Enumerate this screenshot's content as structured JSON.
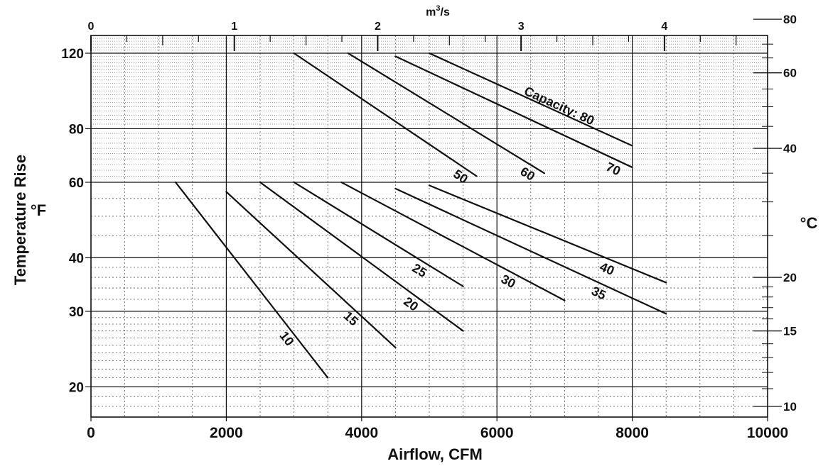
{
  "chart_data": {
    "type": "line",
    "title": "",
    "xlabel": "Airflow, CFM",
    "ylabel": "Temperature Rise",
    "ylabel_unit": "°F",
    "top_axis_label": "m3/s",
    "right_axis_label": "°C",
    "xlim": [
      0,
      10000
    ],
    "ylim": [
      17,
      132
    ],
    "y_scale": "log",
    "grid": true,
    "x_ticks": [
      "0",
      "2000",
      "4000",
      "6000",
      "8000",
      "10000"
    ],
    "x_tick_values": [
      0,
      2000,
      4000,
      6000,
      8000,
      10000
    ],
    "y_ticks": [
      "20",
      "30",
      "40",
      "60",
      "80",
      "120"
    ],
    "y_tick_values": [
      20,
      30,
      40,
      60,
      80,
      120
    ],
    "top_ticks": [
      "0",
      "1",
      "2",
      "3",
      "4"
    ],
    "top_tick_values": [
      0,
      1,
      2,
      3,
      4
    ],
    "right_ticks": [
      "10",
      "15",
      "20",
      "40",
      "60",
      "80"
    ],
    "right_tick_values": [
      10,
      15,
      20,
      40,
      60,
      80
    ],
    "series": [
      {
        "name": "10",
        "label": "10",
        "x": [
          1250,
          3500
        ],
        "y": [
          60,
          21
        ]
      },
      {
        "name": "15",
        "label": "15",
        "x": [
          2000,
          4500
        ],
        "y": [
          57,
          24.7
        ]
      },
      {
        "name": "20",
        "label": "20",
        "x": [
          2500,
          5500
        ],
        "y": [
          60,
          27
        ]
      },
      {
        "name": "25",
        "label": "25",
        "x": [
          3000,
          5500
        ],
        "y": [
          60,
          34.3
        ]
      },
      {
        "name": "30",
        "label": "30",
        "x": [
          3700,
          7000
        ],
        "y": [
          60,
          31.8
        ]
      },
      {
        "name": "35",
        "label": "35",
        "x": [
          4500,
          8500
        ],
        "y": [
          58,
          29.6
        ]
      },
      {
        "name": "40",
        "label": "40",
        "x": [
          5000,
          8500
        ],
        "y": [
          59,
          35
        ]
      },
      {
        "name": "50",
        "label": "50",
        "x": [
          3000,
          5700
        ],
        "y": [
          120,
          62
        ]
      },
      {
        "name": "60",
        "label": "60",
        "x": [
          3800,
          6700
        ],
        "y": [
          120,
          63
        ]
      },
      {
        "name": "70",
        "label": "70",
        "x": [
          4500,
          8000
        ],
        "y": [
          118,
          65
        ]
      },
      {
        "name": "80",
        "label": "Capacity: 80",
        "x": [
          5000,
          8000
        ],
        "y": [
          120,
          73
        ]
      }
    ]
  }
}
